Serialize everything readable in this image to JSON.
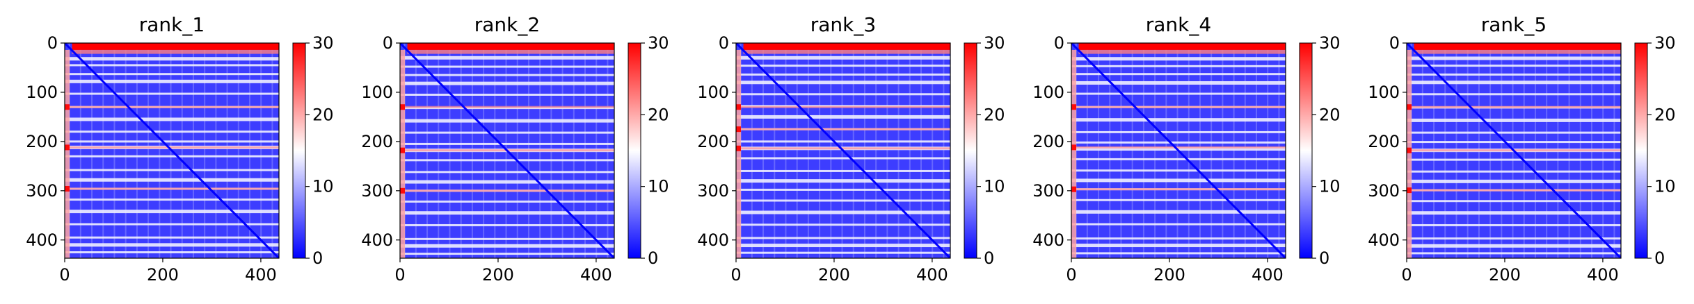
{
  "chart_data": [
    {
      "type": "heatmap",
      "title": "rank_1",
      "xlim": [
        0,
        437
      ],
      "ylim": [
        437,
        0
      ],
      "x_ticks": [
        0,
        200,
        400
      ],
      "y_ticks": [
        0,
        100,
        200,
        300,
        400
      ],
      "colorbar": {
        "min": 0,
        "max": 30,
        "ticks": [
          0,
          10,
          20,
          30
        ],
        "cmap": "bwr"
      },
      "matrix_size": 437,
      "band_rows": [
        32,
        45,
        63,
        78,
        103,
        130,
        155,
        180,
        200,
        212,
        230,
        258,
        278,
        296,
        318,
        342,
        368,
        395,
        410,
        425
      ],
      "hot_rows": [
        130,
        212,
        296
      ],
      "hot_cols": [
        0,
        2,
        4
      ]
    },
    {
      "type": "heatmap",
      "title": "rank_2",
      "xlim": [
        0,
        437
      ],
      "ylim": [
        437,
        0
      ],
      "x_ticks": [
        0,
        200,
        400
      ],
      "y_ticks": [
        0,
        100,
        200,
        300,
        400
      ],
      "colorbar": {
        "min": 0,
        "max": 30,
        "ticks": [
          0,
          10,
          20,
          30
        ],
        "cmap": "bwr"
      },
      "matrix_size": 437,
      "band_rows": [
        30,
        48,
        65,
        82,
        105,
        132,
        158,
        182,
        205,
        218,
        238,
        262,
        282,
        300,
        322,
        345,
        370,
        398,
        412,
        428
      ],
      "hot_rows": [
        130,
        218,
        300
      ],
      "hot_cols": [
        0,
        3,
        6
      ]
    },
    {
      "type": "heatmap",
      "title": "rank_3",
      "xlim": [
        0,
        437
      ],
      "ylim": [
        437,
        0
      ],
      "x_ticks": [
        0,
        200,
        400
      ],
      "y_ticks": [
        0,
        100,
        200,
        300,
        400
      ],
      "colorbar": {
        "min": 0,
        "max": 30,
        "ticks": [
          0,
          10,
          20,
          30
        ],
        "cmap": "bwr"
      },
      "matrix_size": 437,
      "band_rows": [
        30,
        46,
        64,
        80,
        104,
        128,
        150,
        175,
        200,
        214,
        234,
        260,
        280,
        298,
        320,
        344,
        369,
        396,
        411,
        426
      ],
      "hot_rows": [
        130,
        175,
        214
      ],
      "hot_cols": [
        0,
        2
      ]
    },
    {
      "type": "heatmap",
      "title": "rank_4",
      "xlim": [
        0,
        437
      ],
      "ylim": [
        437,
        0
      ],
      "x_ticks": [
        0,
        200,
        400
      ],
      "y_ticks": [
        0,
        100,
        200,
        300,
        400
      ],
      "colorbar": {
        "min": 0,
        "max": 30,
        "ticks": [
          0,
          10,
          20,
          30
        ],
        "cmap": "bwr"
      },
      "matrix_size": 437,
      "band_rows": [
        32,
        47,
        63,
        81,
        103,
        130,
        156,
        181,
        202,
        215,
        236,
        259,
        279,
        297,
        319,
        343,
        368,
        397,
        411,
        427
      ],
      "hot_rows": [
        130,
        212,
        297
      ],
      "hot_cols": [
        0,
        2
      ]
    },
    {
      "type": "heatmap",
      "title": "rank_5",
      "xlim": [
        0,
        437
      ],
      "ylim": [
        437,
        0
      ],
      "x_ticks": [
        0,
        200,
        400
      ],
      "y_ticks": [
        0,
        100,
        200,
        300,
        400
      ],
      "colorbar": {
        "min": 0,
        "max": 30,
        "ticks": [
          0,
          10,
          20,
          30
        ],
        "cmap": "bwr"
      },
      "matrix_size": 437,
      "band_rows": [
        31,
        46,
        64,
        80,
        104,
        131,
        157,
        182,
        201,
        218,
        237,
        261,
        281,
        299,
        321,
        345,
        370,
        397,
        412,
        427
      ],
      "hot_rows": [
        130,
        218,
        299
      ],
      "hot_cols": [
        0,
        3,
        6
      ]
    }
  ]
}
